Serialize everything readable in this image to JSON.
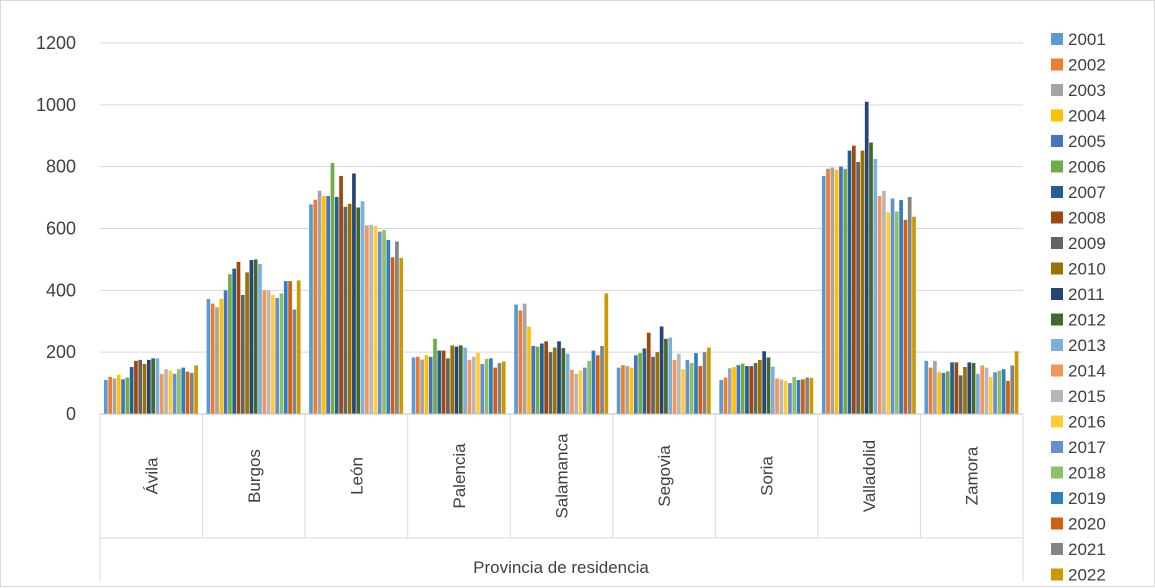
{
  "chart_data": {
    "type": "bar",
    "xlabel": "Provincia de residencia",
    "ylabel": "",
    "ylim": [
      0,
      1200
    ],
    "yticks": [
      "0",
      "200",
      "400",
      "600",
      "800",
      "1000",
      "1200"
    ],
    "grid": true,
    "legend_position": "right",
    "categories": [
      "Ávila",
      "Burgos",
      "León",
      "Palencia",
      "Salamanca",
      "Segovia",
      "Soria",
      "Valladolid",
      "Zamora"
    ],
    "series": [
      {
        "name": "2001",
        "color": "#5b9bd5",
        "values": [
          110,
          372,
          678,
          183,
          354,
          150,
          110,
          770,
          172
        ]
      },
      {
        "name": "2002",
        "color": "#ed7d31",
        "values": [
          120,
          357,
          693,
          185,
          335,
          158,
          118,
          793,
          150
        ]
      },
      {
        "name": "2003",
        "color": "#a5a5a5",
        "values": [
          115,
          345,
          722,
          176,
          357,
          155,
          148,
          797,
          172
        ]
      },
      {
        "name": "2004",
        "color": "#ffc000",
        "values": [
          127,
          372,
          705,
          190,
          283,
          150,
          152,
          790,
          135
        ]
      },
      {
        "name": "2005",
        "color": "#4472c4",
        "values": [
          112,
          400,
          705,
          185,
          220,
          190,
          158,
          800,
          133
        ]
      },
      {
        "name": "2006",
        "color": "#70ad47",
        "values": [
          118,
          452,
          812,
          243,
          218,
          197,
          163,
          793,
          138
        ]
      },
      {
        "name": "2007",
        "color": "#255e91",
        "values": [
          152,
          470,
          702,
          205,
          228,
          212,
          155,
          852,
          167
        ]
      },
      {
        "name": "2008",
        "color": "#9e480e",
        "values": [
          172,
          492,
          770,
          205,
          235,
          263,
          155,
          868,
          167
        ]
      },
      {
        "name": "2009",
        "color": "#636363",
        "values": [
          175,
          385,
          670,
          180,
          200,
          185,
          165,
          815,
          125
        ]
      },
      {
        "name": "2010",
        "color": "#997300",
        "values": [
          162,
          458,
          680,
          222,
          215,
          200,
          175,
          852,
          152
        ]
      },
      {
        "name": "2011",
        "color": "#264478",
        "values": [
          175,
          498,
          778,
          218,
          235,
          283,
          203,
          1010,
          167
        ]
      },
      {
        "name": "2012",
        "color": "#43682b",
        "values": [
          180,
          500,
          668,
          222,
          213,
          243,
          183,
          878,
          165
        ]
      },
      {
        "name": "2013",
        "color": "#7cafdd",
        "values": [
          180,
          485,
          688,
          215,
          195,
          247,
          153,
          825,
          130
        ]
      },
      {
        "name": "2014",
        "color": "#f1975a",
        "values": [
          130,
          400,
          610,
          175,
          143,
          175,
          115,
          705,
          157
        ]
      },
      {
        "name": "2015",
        "color": "#b7b7b7",
        "values": [
          145,
          400,
          612,
          185,
          130,
          195,
          112,
          722,
          150
        ]
      },
      {
        "name": "2016",
        "color": "#ffcd33",
        "values": [
          140,
          385,
          608,
          198,
          140,
          145,
          107,
          652,
          120
        ]
      },
      {
        "name": "2017",
        "color": "#698ed0",
        "values": [
          130,
          375,
          590,
          162,
          150,
          175,
          100,
          697,
          135
        ]
      },
      {
        "name": "2018",
        "color": "#8cc168",
        "values": [
          145,
          390,
          595,
          178,
          172,
          165,
          120,
          655,
          140
        ]
      },
      {
        "name": "2019",
        "color": "#327dc2",
        "values": [
          150,
          430,
          563,
          180,
          205,
          197,
          110,
          692,
          145
        ]
      },
      {
        "name": "2020",
        "color": "#d26012",
        "values": [
          137,
          430,
          507,
          150,
          190,
          155,
          112,
          628,
          107
        ]
      },
      {
        "name": "2021",
        "color": "#848484",
        "values": [
          133,
          338,
          558,
          165,
          220,
          200,
          118,
          702,
          157
        ]
      },
      {
        "name": "2022",
        "color": "#cc9a00",
        "values": [
          157,
          432,
          505,
          170,
          390,
          215,
          117,
          638,
          203
        ]
      }
    ]
  }
}
